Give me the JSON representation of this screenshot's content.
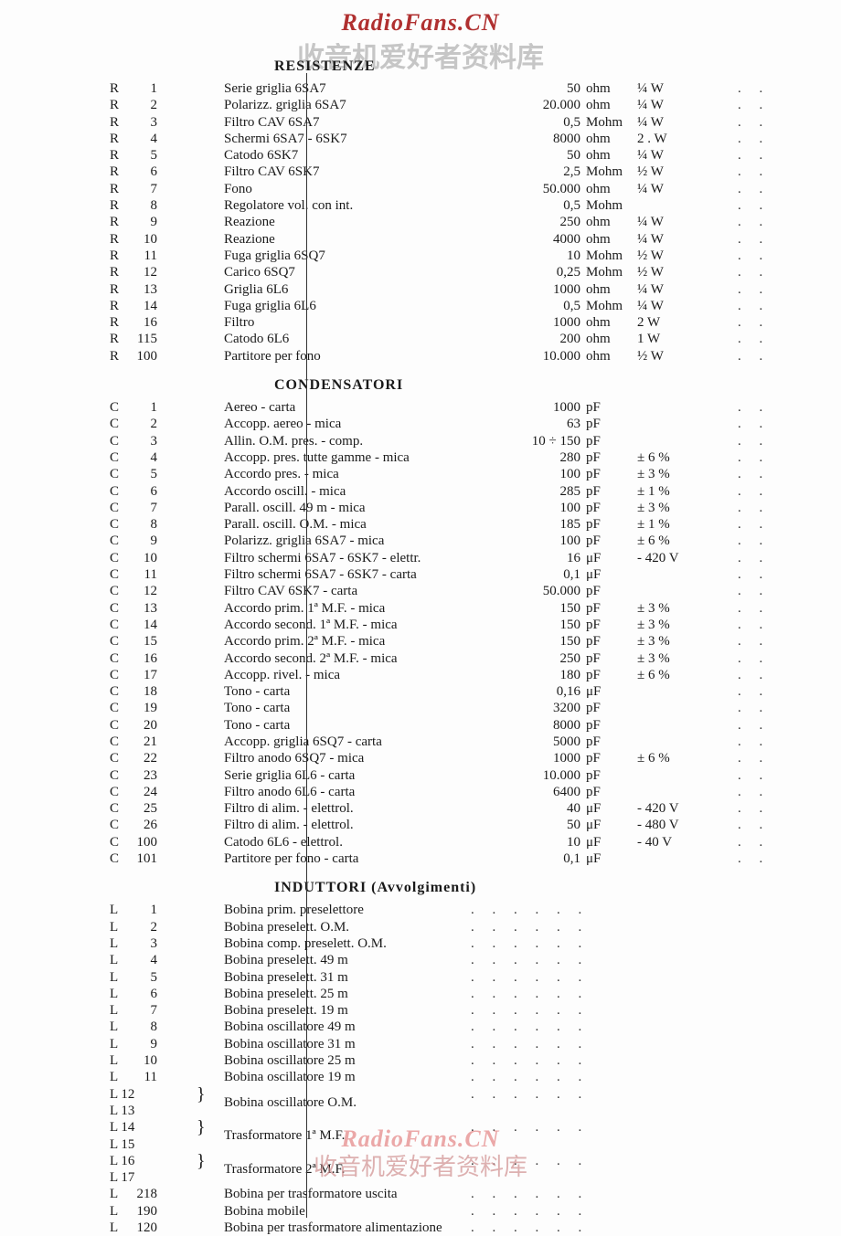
{
  "watermarks": {
    "top_en": "RadioFans.CN",
    "top_cn": "收音机爱好者资料库",
    "bottom_en": "RadioFans.CN",
    "bottom_cn": "收音机爱好者资料库"
  },
  "sections": {
    "resistors_title": "RESISTENZE",
    "capacitors_title": "CONDENSATORI",
    "inductors_title": "INDUTTORI (Avvolgimenti)"
  },
  "resistors": [
    {
      "ref": "R",
      "n": "1",
      "desc": "Serie griglia 6SA7",
      "val": "50",
      "unit": "ohm",
      "pwr": "¼ W"
    },
    {
      "ref": "R",
      "n": "2",
      "desc": "Polarizz. griglia 6SA7",
      "val": "20.000",
      "unit": "ohm",
      "pwr": "¼ W"
    },
    {
      "ref": "R",
      "n": "3",
      "desc": "Filtro CAV 6SA7",
      "val": "0,5",
      "unit": "Mohm",
      "pwr": "¼ W"
    },
    {
      "ref": "R",
      "n": "4",
      "desc": "Schermi 6SA7 - 6SK7",
      "val": "8000",
      "unit": "ohm",
      "pwr": "2 . W"
    },
    {
      "ref": "R",
      "n": "5",
      "desc": "Catodo 6SK7",
      "val": "50",
      "unit": "ohm",
      "pwr": "¼ W"
    },
    {
      "ref": "R",
      "n": "6",
      "desc": "Filtro CAV 6SK7",
      "val": "2,5",
      "unit": "Mohm",
      "pwr": "½ W"
    },
    {
      "ref": "R",
      "n": "7",
      "desc": "Fono",
      "val": "50.000",
      "unit": "ohm",
      "pwr": "¼ W"
    },
    {
      "ref": "R",
      "n": "8",
      "desc": "Regolatore vol. con int.",
      "val": "0,5",
      "unit": "Mohm",
      "pwr": ""
    },
    {
      "ref": "R",
      "n": "9",
      "desc": "Reazione",
      "val": "250",
      "unit": "ohm",
      "pwr": "¼ W"
    },
    {
      "ref": "R",
      "n": "10",
      "desc": "Reazione",
      "val": "4000",
      "unit": "ohm",
      "pwr": "¼ W"
    },
    {
      "ref": "R",
      "n": "11",
      "desc": "Fuga griglia 6SQ7",
      "val": "10",
      "unit": "Mohm",
      "pwr": "½ W"
    },
    {
      "ref": "R",
      "n": "12",
      "desc": "Carico 6SQ7",
      "val": "0,25",
      "unit": "Mohm",
      "pwr": "½ W"
    },
    {
      "ref": "R",
      "n": "13",
      "desc": "Griglia 6L6",
      "val": "1000",
      "unit": "ohm",
      "pwr": "¼ W"
    },
    {
      "ref": "R",
      "n": "14",
      "desc": "Fuga griglia 6L6",
      "val": "0,5",
      "unit": "Mohm",
      "pwr": "¼ W"
    },
    {
      "ref": "R",
      "n": "16",
      "desc": "Filtro",
      "val": "1000",
      "unit": "ohm",
      "pwr": "2 W"
    },
    {
      "ref": "R",
      "n": "115",
      "desc": "Catodo 6L6",
      "val": "200",
      "unit": "ohm",
      "pwr": "1 W"
    },
    {
      "ref": "R",
      "n": "100",
      "desc": "Partitore per fono",
      "val": "10.000",
      "unit": "ohm",
      "pwr": "½ W"
    }
  ],
  "capacitors": [
    {
      "ref": "C",
      "n": "1",
      "desc": "Aereo - carta",
      "val": "1000",
      "unit": "pF",
      "tol": ""
    },
    {
      "ref": "C",
      "n": "2",
      "desc": "Accopp. aereo - mica",
      "val": "63",
      "unit": "pF",
      "tol": ""
    },
    {
      "ref": "C",
      "n": "3",
      "desc": "Allin. O.M. pres. - comp.",
      "val": "10 ÷ 150",
      "unit": "pF",
      "tol": ""
    },
    {
      "ref": "C",
      "n": "4",
      "desc": "Accopp. pres. tutte gamme - mica",
      "val": "280",
      "unit": "pF",
      "tol": "± 6 %"
    },
    {
      "ref": "C",
      "n": "5",
      "desc": "Accordo pres. - mica",
      "val": "100",
      "unit": "pF",
      "tol": "± 3 %"
    },
    {
      "ref": "C",
      "n": "6",
      "desc": "Accordo oscill. - mica",
      "val": "285",
      "unit": "pF",
      "tol": "± 1 %"
    },
    {
      "ref": "C",
      "n": "7",
      "desc": "Parall. oscill. 49 m - mica",
      "val": "100",
      "unit": "pF",
      "tol": "± 3 %"
    },
    {
      "ref": "C",
      "n": "8",
      "desc": "Parall. oscill. O.M. - mica",
      "val": "185",
      "unit": "pF",
      "tol": "± 1 %"
    },
    {
      "ref": "C",
      "n": "9",
      "desc": "Polarizz. griglia 6SA7 - mica",
      "val": "100",
      "unit": "pF",
      "tol": "± 6 %"
    },
    {
      "ref": "C",
      "n": "10",
      "desc": "Filtro schermi 6SA7 - 6SK7 - elettr.",
      "val": "16",
      "unit": "μF",
      "tol": "- 420 V"
    },
    {
      "ref": "C",
      "n": "11",
      "desc": "Filtro schermi 6SA7 - 6SK7 - carta",
      "val": "0,1",
      "unit": "μF",
      "tol": ""
    },
    {
      "ref": "C",
      "n": "12",
      "desc": "Filtro CAV 6SK7 - carta",
      "val": "50.000",
      "unit": "pF",
      "tol": ""
    },
    {
      "ref": "C",
      "n": "13",
      "desc": "Accordo prim. 1ª M.F. - mica",
      "val": "150",
      "unit": "pF",
      "tol": "± 3 %"
    },
    {
      "ref": "C",
      "n": "14",
      "desc": "Accordo second. 1ª M.F. - mica",
      "val": "150",
      "unit": "pF",
      "tol": "± 3 %"
    },
    {
      "ref": "C",
      "n": "15",
      "desc": "Accordo prim. 2ª M.F. - mica",
      "val": "150",
      "unit": "pF",
      "tol": "± 3 %"
    },
    {
      "ref": "C",
      "n": "16",
      "desc": "Accordo second. 2ª M.F. - mica",
      "val": "250",
      "unit": "pF",
      "tol": "± 3 %"
    },
    {
      "ref": "C",
      "n": "17",
      "desc": "Accopp. rivel. - mica",
      "val": "180",
      "unit": "pF",
      "tol": "± 6 %"
    },
    {
      "ref": "C",
      "n": "18",
      "desc": "Tono - carta",
      "val": "0,16",
      "unit": "μF",
      "tol": ""
    },
    {
      "ref": "C",
      "n": "19",
      "desc": "Tono - carta",
      "val": "3200",
      "unit": "pF",
      "tol": ""
    },
    {
      "ref": "C",
      "n": "20",
      "desc": "Tono - carta",
      "val": "8000",
      "unit": "pF",
      "tol": ""
    },
    {
      "ref": "C",
      "n": "21",
      "desc": "Accopp. griglia 6SQ7 - carta",
      "val": "5000",
      "unit": "pF",
      "tol": ""
    },
    {
      "ref": "C",
      "n": "22",
      "desc": "Filtro anodo 6SQ7 - mica",
      "val": "1000",
      "unit": "pF",
      "tol": "± 6 %"
    },
    {
      "ref": "C",
      "n": "23",
      "desc": "Serie griglia 6L6 - carta",
      "val": "10.000",
      "unit": "pF",
      "tol": ""
    },
    {
      "ref": "C",
      "n": "24",
      "desc": "Filtro anodo 6L6 - carta",
      "val": "6400",
      "unit": "pF",
      "tol": ""
    },
    {
      "ref": "C",
      "n": "25",
      "desc": "Filtro di alim. - elettrol.",
      "val": "40",
      "unit": "μF",
      "tol": "- 420 V"
    },
    {
      "ref": "C",
      "n": "26",
      "desc": "Filtro di alim. - elettrol.",
      "val": "50",
      "unit": "μF",
      "tol": "- 480 V"
    },
    {
      "ref": "C",
      "n": "100",
      "desc": "Catodo 6L6 - elettrol.",
      "val": "10",
      "unit": "μF",
      "tol": "- 40 V"
    },
    {
      "ref": "C",
      "n": "101",
      "desc": "Partitore per fono - carta",
      "val": "0,1",
      "unit": "μF",
      "tol": ""
    }
  ],
  "inductors": [
    {
      "ref": "L",
      "n": "1",
      "desc": "Bobina prim. preselettore"
    },
    {
      "ref": "L",
      "n": "2",
      "desc": "Bobina preselett. O.M."
    },
    {
      "ref": "L",
      "n": "3",
      "desc": "Bobina comp. preselett. O.M."
    },
    {
      "ref": "L",
      "n": "4",
      "desc": "Bobina preselett. 49 m"
    },
    {
      "ref": "L",
      "n": "5",
      "desc": "Bobina preselett. 31 m"
    },
    {
      "ref": "L",
      "n": "6",
      "desc": "Bobina preselett. 25 m"
    },
    {
      "ref": "L",
      "n": "7",
      "desc": "Bobina preselett. 19 m"
    },
    {
      "ref": "L",
      "n": "8",
      "desc": "Bobina oscillatore 49 m"
    },
    {
      "ref": "L",
      "n": "9",
      "desc": "Bobina oscillatore 31 m"
    },
    {
      "ref": "L",
      "n": "10",
      "desc": "Bobina oscillatore 25 m"
    },
    {
      "ref": "L",
      "n": "11",
      "desc": "Bobina oscillatore 19 m"
    }
  ],
  "inductor_groups": [
    {
      "refs": [
        "L 12",
        "L 13"
      ],
      "desc": "Bobina oscillatore O.M."
    },
    {
      "refs": [
        "L 14",
        "L 15"
      ],
      "desc": "Trasformatore 1ª M.F."
    },
    {
      "refs": [
        "L 16",
        "L 17"
      ],
      "desc": "Trasformatore 2ª M.F."
    }
  ],
  "inductors_tail": [
    {
      "ref": "L",
      "n": "218",
      "desc": "Bobina per trasformatore uscita"
    },
    {
      "ref": "L",
      "n": "190",
      "desc": "Bobina mobile"
    },
    {
      "ref": "L",
      "n": "120",
      "desc": "Bobina per trasformatore alimentazione"
    }
  ]
}
